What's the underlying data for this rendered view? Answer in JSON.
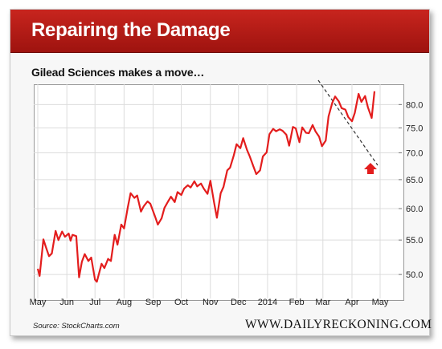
{
  "header": {
    "title": "Repairing the Damage"
  },
  "subtitle": "Gilead Sciences makes a move…",
  "footer": {
    "source": "Source: StockCharts.com",
    "brand": "WWW.DAILYRECKONING.COM"
  },
  "colors": {
    "banner": "#b81c16",
    "line": "#e31d1d",
    "arrow": "#e31d1d",
    "trend": "#333333"
  },
  "chart_data": {
    "type": "line",
    "title": "",
    "xlabel": "",
    "ylabel": "",
    "x_ticks": [
      "May",
      "Jun",
      "Jul",
      "Aug",
      "Sep",
      "Oct",
      "Nov",
      "Dec",
      "2014",
      "Feb",
      "Mar",
      "Apr",
      "May"
    ],
    "y_ticks": [
      "50.0",
      "55.0",
      "60.0",
      "65.0",
      "70.0",
      "75.0",
      "80.0"
    ],
    "y_scale": "log",
    "ylim": [
      48.7,
      85
    ],
    "grid": true,
    "series": [
      {
        "name": "",
        "x": [
          "2013-05-01",
          "2013-05-03",
          "2013-05-07",
          "2013-05-10",
          "2013-05-13",
          "2013-05-16",
          "2013-05-20",
          "2013-05-23",
          "2013-05-27",
          "2013-05-30",
          "2013-06-03",
          "2013-06-05",
          "2013-06-07",
          "2013-06-11",
          "2013-06-14",
          "2013-06-17",
          "2013-06-20",
          "2013-06-24",
          "2013-06-27",
          "2013-07-01",
          "2013-07-03",
          "2013-07-08",
          "2013-07-11",
          "2013-07-15",
          "2013-07-18",
          "2013-07-22",
          "2013-07-25",
          "2013-07-29",
          "2013-08-01",
          "2013-08-05",
          "2013-08-08",
          "2013-08-12",
          "2013-08-15",
          "2013-08-19",
          "2013-08-22",
          "2013-08-26",
          "2013-08-29",
          "2013-09-03",
          "2013-09-06",
          "2013-09-10",
          "2013-09-13",
          "2013-09-17",
          "2013-09-20",
          "2013-09-24",
          "2013-09-27",
          "2013-10-01",
          "2013-10-04",
          "2013-10-08",
          "2013-10-11",
          "2013-10-15",
          "2013-10-18",
          "2013-10-22",
          "2013-10-25",
          "2013-10-29",
          "2013-11-01",
          "2013-11-05",
          "2013-11-08",
          "2013-11-12",
          "2013-11-15",
          "2013-11-19",
          "2013-11-22",
          "2013-11-26",
          "2013-11-29",
          "2013-12-03",
          "2013-12-06",
          "2013-12-10",
          "2013-12-13",
          "2013-12-17",
          "2013-12-20",
          "2013-12-24",
          "2013-12-27",
          "2013-12-31",
          "2014-01-03",
          "2014-01-07",
          "2014-01-10",
          "2014-01-14",
          "2014-01-17",
          "2014-01-21",
          "2014-01-24",
          "2014-01-28",
          "2014-01-31",
          "2014-02-04",
          "2014-02-07",
          "2014-02-11",
          "2014-02-14",
          "2014-02-18",
          "2014-02-21",
          "2014-02-25",
          "2014-02-28",
          "2014-03-04",
          "2014-03-07",
          "2014-03-11",
          "2014-03-14",
          "2014-03-18",
          "2014-03-21",
          "2014-03-25",
          "2014-03-28",
          "2014-04-01",
          "2014-04-04",
          "2014-04-08",
          "2014-04-11",
          "2014-04-15",
          "2014-04-18",
          "2014-04-22",
          "2014-04-25"
        ],
        "y": [
          50.8,
          49.8,
          55.1,
          53.8,
          52.6,
          53.0,
          56.4,
          55.0,
          56.3,
          55.5,
          56.0,
          54.9,
          55.8,
          55.6,
          49.6,
          51.8,
          52.9,
          51.9,
          52.4,
          49.3,
          49.0,
          51.5,
          50.9,
          52.2,
          51.9,
          55.8,
          54.3,
          57.4,
          56.8,
          60.2,
          62.6,
          61.8,
          62.2,
          59.5,
          60.4,
          61.2,
          60.8,
          58.7,
          57.4,
          58.4,
          60.1,
          61.2,
          62.0,
          61.1,
          62.8,
          62.3,
          63.4,
          64.0,
          63.6,
          64.7,
          63.8,
          64.3,
          63.4,
          62.5,
          64.8,
          61.0,
          58.5,
          62.6,
          63.7,
          66.7,
          67.2,
          69.5,
          71.7,
          70.9,
          72.9,
          70.6,
          69.3,
          67.4,
          66.0,
          66.7,
          69.3,
          70.1,
          73.7,
          74.8,
          74.3,
          74.7,
          74.4,
          73.6,
          71.4,
          75.2,
          74.9,
          72.1,
          75.1,
          74.0,
          73.9,
          75.6,
          74.3,
          73.2,
          71.3,
          72.4,
          77.4,
          80.4,
          81.8,
          80.7,
          79.2,
          78.9,
          77.3,
          76.4,
          78.2,
          82.4,
          80.6,
          81.9,
          79.4,
          77.1,
          83.0
        ]
      }
    ]
  }
}
